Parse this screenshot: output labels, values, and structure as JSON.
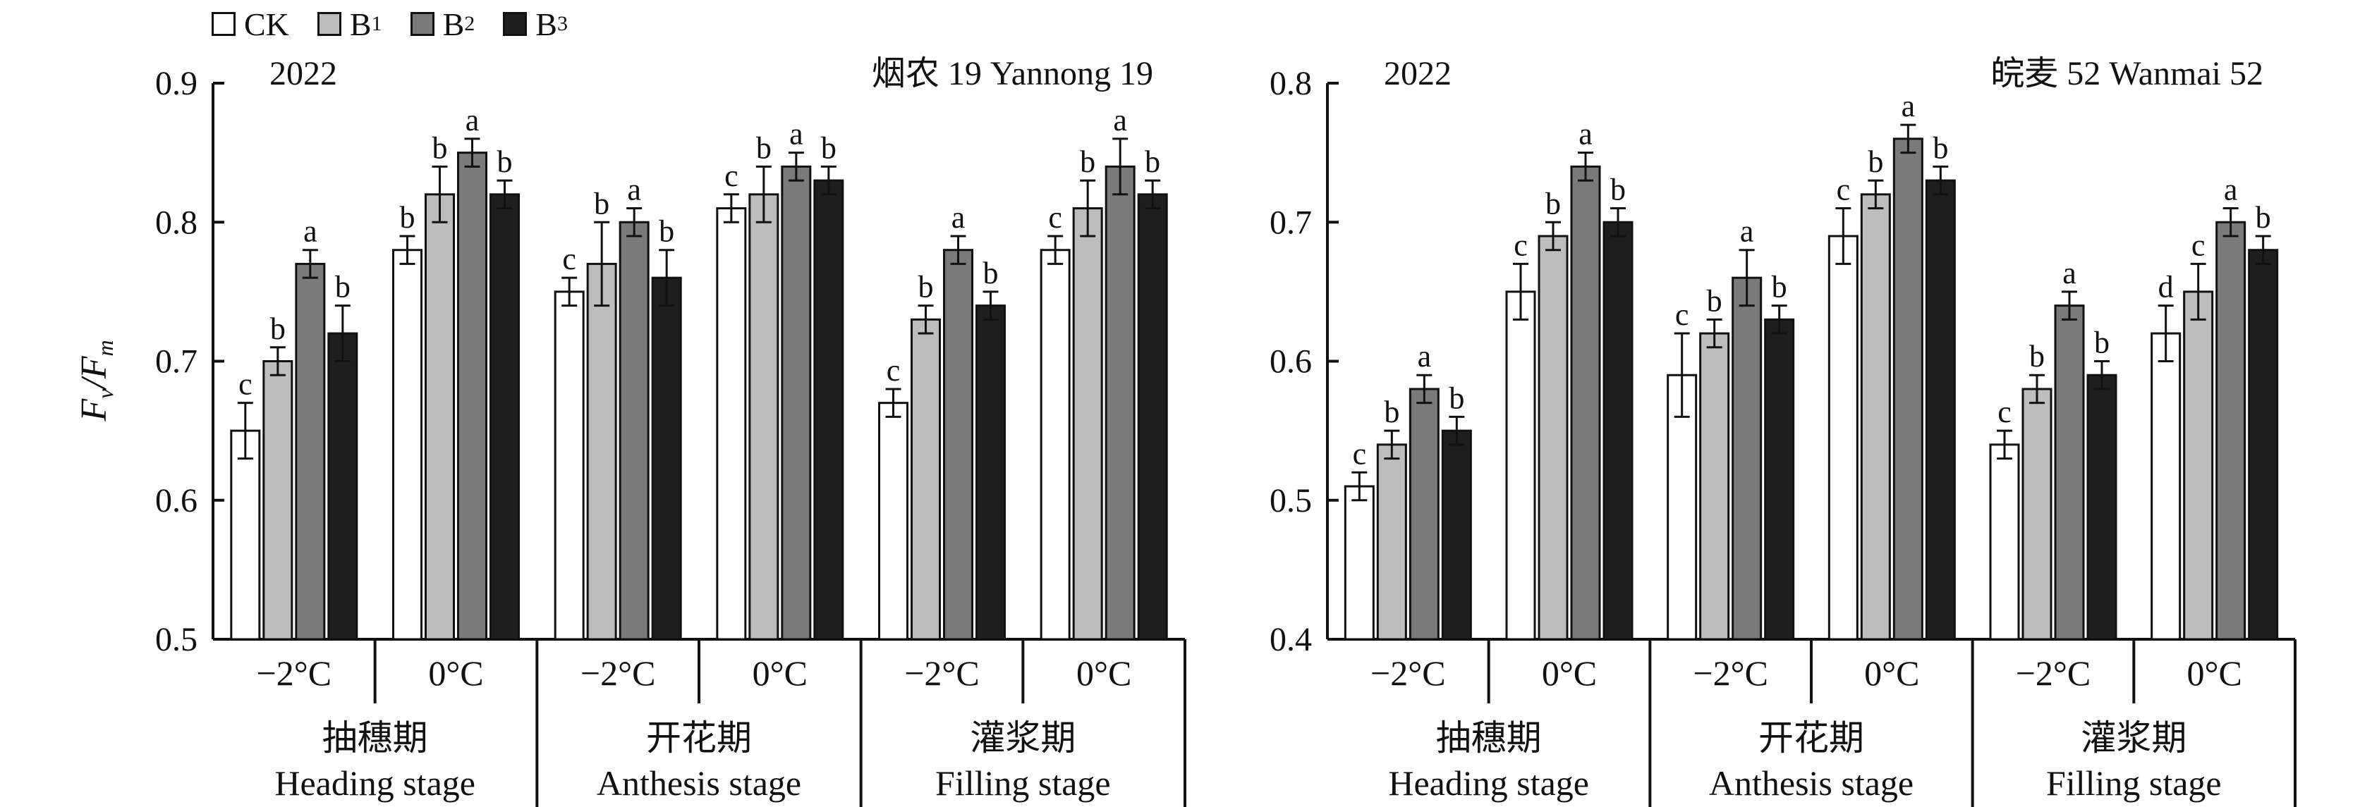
{
  "legend": {
    "items": [
      {
        "label": "CK",
        "sub": "",
        "color": "#ffffff"
      },
      {
        "label": "B",
        "sub": "1",
        "color": "#bdbdbd"
      },
      {
        "label": "B",
        "sub": "2",
        "color": "#7a7a7a"
      },
      {
        "label": "B",
        "sub": "3",
        "color": "#1e1e1e"
      }
    ]
  },
  "y_axis_label": {
    "main1": "F",
    "sub1": "v",
    "sep": "/",
    "main2": "F",
    "sub2": "m"
  },
  "chart_data": [
    {
      "type": "bar",
      "year": "2022",
      "title": "烟农 19 Yannong 19",
      "ylim": [
        0.5,
        0.9
      ],
      "yticks": [
        "0.5",
        "0.6",
        "0.7",
        "0.8",
        "0.9"
      ],
      "series_names": [
        "CK",
        "B1",
        "B2",
        "B3"
      ],
      "stages": [
        {
          "cn": "抽穗期",
          "en": "Heading stage",
          "groups": [
            {
              "label": "−2°C",
              "values": [
                0.65,
                0.7,
                0.77,
                0.72
              ],
              "errors": [
                0.02,
                0.01,
                0.01,
                0.02
              ],
              "letters": [
                "c",
                "b",
                "a",
                "b"
              ]
            },
            {
              "label": "0°C",
              "values": [
                0.78,
                0.82,
                0.85,
                0.82
              ],
              "errors": [
                0.01,
                0.02,
                0.01,
                0.01
              ],
              "letters": [
                "b",
                "b",
                "a",
                "b"
              ]
            }
          ]
        },
        {
          "cn": "开花期",
          "en": "Anthesis stage",
          "groups": [
            {
              "label": "−2°C",
              "values": [
                0.75,
                0.77,
                0.8,
                0.76
              ],
              "errors": [
                0.01,
                0.03,
                0.01,
                0.02
              ],
              "letters": [
                "c",
                "b",
                "a",
                "b"
              ]
            },
            {
              "label": "0°C",
              "values": [
                0.81,
                0.82,
                0.84,
                0.83
              ],
              "errors": [
                0.01,
                0.02,
                0.01,
                0.01
              ],
              "letters": [
                "c",
                "b",
                "a",
                "b"
              ]
            }
          ]
        },
        {
          "cn": "灌浆期",
          "en": "Filling stage",
          "groups": [
            {
              "label": "−2°C",
              "values": [
                0.67,
                0.73,
                0.78,
                0.74
              ],
              "errors": [
                0.01,
                0.01,
                0.01,
                0.01
              ],
              "letters": [
                "c",
                "b",
                "a",
                "b"
              ]
            },
            {
              "label": "0°C",
              "values": [
                0.78,
                0.81,
                0.84,
                0.82
              ],
              "errors": [
                0.01,
                0.02,
                0.02,
                0.01
              ],
              "letters": [
                "c",
                "b",
                "a",
                "b"
              ]
            }
          ]
        }
      ]
    },
    {
      "type": "bar",
      "year": "2022",
      "title": "皖麦 52 Wanmai 52",
      "ylim": [
        0.4,
        0.8
      ],
      "yticks": [
        "0.4",
        "0.5",
        "0.6",
        "0.7",
        "0.8"
      ],
      "series_names": [
        "CK",
        "B1",
        "B2",
        "B3"
      ],
      "stages": [
        {
          "cn": "抽穗期",
          "en": "Heading stage",
          "groups": [
            {
              "label": "−2°C",
              "values": [
                0.51,
                0.54,
                0.58,
                0.55
              ],
              "errors": [
                0.01,
                0.01,
                0.01,
                0.01
              ],
              "letters": [
                "c",
                "b",
                "a",
                "b"
              ]
            },
            {
              "label": "0°C",
              "values": [
                0.65,
                0.69,
                0.74,
                0.7
              ],
              "errors": [
                0.02,
                0.01,
                0.01,
                0.01
              ],
              "letters": [
                "c",
                "b",
                "a",
                "b"
              ]
            }
          ]
        },
        {
          "cn": "开花期",
          "en": "Anthesis stage",
          "groups": [
            {
              "label": "−2°C",
              "values": [
                0.59,
                0.62,
                0.66,
                0.63
              ],
              "errors": [
                0.03,
                0.01,
                0.02,
                0.01
              ],
              "letters": [
                "c",
                "b",
                "a",
                "b"
              ]
            },
            {
              "label": "0°C",
              "values": [
                0.69,
                0.72,
                0.76,
                0.73
              ],
              "errors": [
                0.02,
                0.01,
                0.01,
                0.01
              ],
              "letters": [
                "c",
                "b",
                "a",
                "b"
              ]
            }
          ]
        },
        {
          "cn": "灌浆期",
          "en": "Filling stage",
          "groups": [
            {
              "label": "−2°C",
              "values": [
                0.54,
                0.58,
                0.64,
                0.59
              ],
              "errors": [
                0.01,
                0.01,
                0.01,
                0.01
              ],
              "letters": [
                "c",
                "b",
                "a",
                "b"
              ]
            },
            {
              "label": "0°C",
              "values": [
                0.62,
                0.65,
                0.7,
                0.68
              ],
              "errors": [
                0.02,
                0.02,
                0.01,
                0.01
              ],
              "letters": [
                "d",
                "c",
                "a",
                "b"
              ]
            }
          ]
        }
      ]
    }
  ]
}
